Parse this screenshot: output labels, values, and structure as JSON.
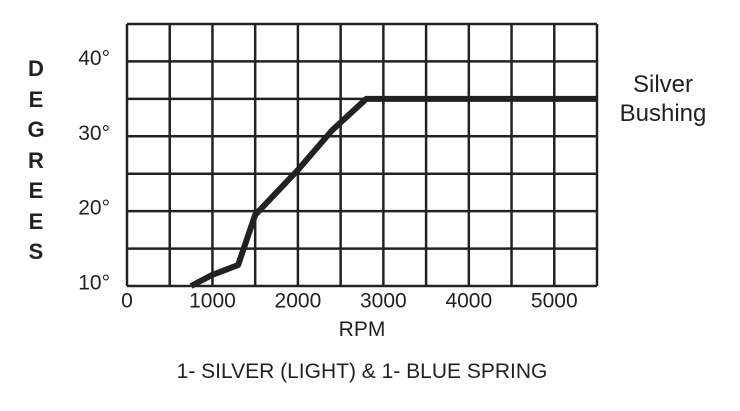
{
  "chart_data": {
    "type": "line",
    "y_label": "DEGREES",
    "x_label": "RPM",
    "caption": "1- SILVER (LIGHT) & 1- BLUE SPRING",
    "annotation": "Silver Bushing",
    "x": [
      750,
      1000,
      1300,
      1500,
      2000,
      2400,
      2800,
      5500
    ],
    "series": [
      {
        "color": "#222222",
        "values": [
          10,
          11.5,
          12.8,
          19.5,
          25.5,
          30.8,
          35,
          35
        ]
      }
    ],
    "xlim": [
      0,
      5500
    ],
    "ylim": [
      10,
      45
    ],
    "xticks": [
      0,
      1000,
      2000,
      3000,
      4000,
      5000
    ],
    "yticks": [
      {
        "value": 10,
        "label": "10°"
      },
      {
        "value": 20,
        "label": "20°"
      },
      {
        "value": 30,
        "label": "30°"
      },
      {
        "value": 40,
        "label": "40°"
      }
    ],
    "xgrid": [
      0,
      500,
      1000,
      1500,
      2000,
      2500,
      3000,
      3500,
      4000,
      4500,
      5000,
      5500
    ],
    "ygrid": [
      10,
      15,
      20,
      25,
      30,
      35,
      40,
      45
    ]
  }
}
